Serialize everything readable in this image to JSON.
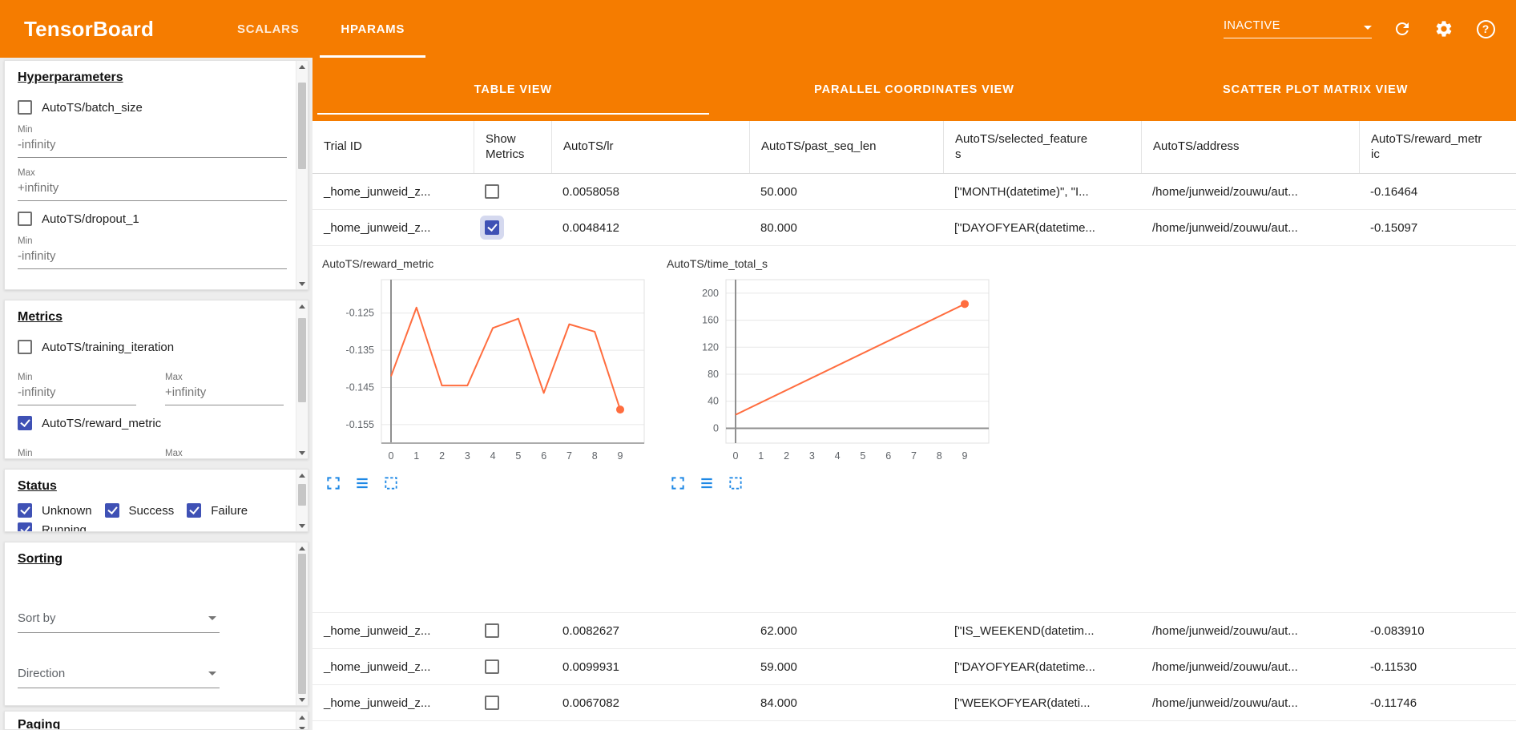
{
  "colors": {
    "brand_orange": "#f57c00",
    "checkbox_blue": "#3f51b5",
    "chart_line": "#ff6d3f",
    "icon_blue": "#1e88e5"
  },
  "topbar": {
    "brand": "TensorBoard",
    "tabs": [
      "SCALARS",
      "HPARAMS"
    ],
    "run_status": "INACTIVE",
    "help_glyph": "?"
  },
  "view_tabs": [
    "TABLE VIEW",
    "PARALLEL COORDINATES VIEW",
    "SCATTER PLOT MATRIX VIEW"
  ],
  "sidebar": {
    "min_label": "Min",
    "max_label": "Max",
    "neg_infinity": "-infinity",
    "pos_infinity": "+infinity",
    "hyperparameters": {
      "title": "Hyperparameters",
      "params": [
        {
          "label": "AutoTS/batch_size",
          "checked": false
        },
        {
          "label": "AutoTS/dropout_1",
          "checked": false
        }
      ]
    },
    "metrics": {
      "title": "Metrics",
      "items": [
        {
          "label": "AutoTS/training_iteration",
          "checked": false
        },
        {
          "label": "AutoTS/reward_metric",
          "checked": true
        }
      ]
    },
    "status": {
      "title": "Status",
      "items": [
        {
          "label": "Unknown",
          "checked": true
        },
        {
          "label": "Success",
          "checked": true
        },
        {
          "label": "Failure",
          "checked": true
        },
        {
          "label": "Running",
          "checked": true
        }
      ]
    },
    "sorting": {
      "title": "Sorting",
      "sort_by_label": "Sort by",
      "direction_label": "Direction"
    },
    "paging": {
      "title": "Paging"
    }
  },
  "table": {
    "columns": [
      "Trial ID",
      "Show Metrics",
      "AutoTS/lr",
      "AutoTS/past_seq_len",
      "AutoTS/selected_features",
      "AutoTS/address",
      "AutoTS/reward_metric"
    ],
    "rows_top": [
      {
        "trial_id": "_home_junweid_z...",
        "show_metrics": false,
        "lr": "0.0058058",
        "past_seq_len": "50.000",
        "selected_features": "[\"MONTH(datetime)\", \"I...",
        "address": "/home/junweid/zouwu/aut...",
        "reward_metric": "-0.16464"
      },
      {
        "trial_id": "_home_junweid_z...",
        "show_metrics": true,
        "lr": "0.0048412",
        "past_seq_len": "80.000",
        "selected_features": "[\"DAYOFYEAR(datetime...",
        "address": "/home/junweid/zouwu/aut...",
        "reward_metric": "-0.15097"
      }
    ],
    "rows_bottom": [
      {
        "trial_id": "_home_junweid_z...",
        "show_metrics": false,
        "lr": "0.0082627",
        "past_seq_len": "62.000",
        "selected_features": "[\"IS_WEEKEND(datetim...",
        "address": "/home/junweid/zouwu/aut...",
        "reward_metric": "-0.083910"
      },
      {
        "trial_id": "_home_junweid_z...",
        "show_metrics": false,
        "lr": "0.0099931",
        "past_seq_len": "59.000",
        "selected_features": "[\"DAYOFYEAR(datetime...",
        "address": "/home/junweid/zouwu/aut...",
        "reward_metric": "-0.11530"
      },
      {
        "trial_id": "_home_junweid_z...",
        "show_metrics": false,
        "lr": "0.0067082",
        "past_seq_len": "84.000",
        "selected_features": "[\"WEEKOFYEAR(dateti...",
        "address": "/home/junweid/zouwu/aut...",
        "reward_metric": "-0.11746"
      }
    ]
  },
  "chart_data": [
    {
      "type": "line",
      "title": "AutoTS/reward_metric",
      "x": [
        0,
        1,
        2,
        3,
        4,
        5,
        6,
        7,
        8,
        9
      ],
      "values": [
        -0.142,
        -0.1235,
        -0.1445,
        -0.1445,
        -0.129,
        -0.1265,
        -0.1465,
        -0.128,
        -0.13,
        -0.15097
      ],
      "x_ticks": [
        0,
        1,
        2,
        3,
        4,
        5,
        6,
        7,
        8,
        9
      ],
      "y_ticks": [
        -0.125,
        -0.135,
        -0.145,
        -0.155
      ],
      "ylim": [
        -0.16,
        -0.116
      ],
      "zero_line": false,
      "xlabel": "",
      "ylabel": ""
    },
    {
      "type": "line",
      "title": "AutoTS/time_total_s",
      "x": [
        0,
        9
      ],
      "values": [
        20,
        184
      ],
      "x_ticks": [
        0,
        1,
        2,
        3,
        4,
        5,
        6,
        7,
        8,
        9
      ],
      "y_ticks": [
        0,
        40,
        80,
        120,
        160,
        200
      ],
      "ylim": [
        -22,
        220
      ],
      "zero_line": true,
      "xlabel": "",
      "ylabel": ""
    }
  ]
}
